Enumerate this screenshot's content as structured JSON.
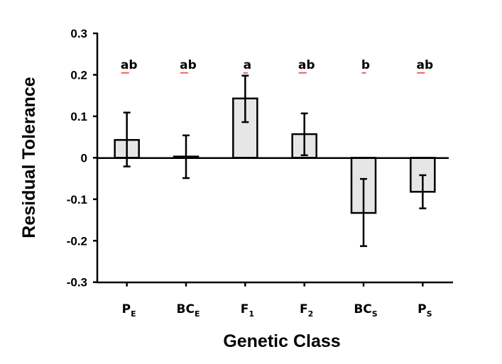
{
  "chart_data": {
    "type": "bar",
    "title": "",
    "xlabel": "Genetic Class",
    "ylabel": "Residual Tolerance",
    "ylim": [
      -0.3,
      0.3
    ],
    "yticks": [
      0.3,
      0.2,
      0.1,
      0,
      -0.1,
      -0.2,
      -0.3
    ],
    "ytick_labels": [
      "0.3",
      "0.2",
      "0.1",
      "0",
      "-0.1",
      "-0.2",
      "-0.3"
    ],
    "categories": [
      {
        "main": "P",
        "sub": "E"
      },
      {
        "main": "BC",
        "sub": "E"
      },
      {
        "main": "F",
        "sub": "1"
      },
      {
        "main": "F",
        "sub": "2"
      },
      {
        "main": "BC",
        "sub": "S"
      },
      {
        "main": "P",
        "sub": "S"
      }
    ],
    "values": [
      0.043,
      0.003,
      0.143,
      0.057,
      -0.133,
      -0.082
    ],
    "error_upper": [
      0.109,
      0.054,
      0.198,
      0.107,
      -0.051,
      -0.042
    ],
    "error_lower": [
      -0.021,
      -0.049,
      0.086,
      0.006,
      -0.213,
      -0.122
    ],
    "significance_letters": [
      "ab",
      "ab",
      "a",
      "ab",
      "b",
      "ab"
    ],
    "bar_color": "#e6e6e6",
    "grid": false,
    "legend": "none"
  }
}
